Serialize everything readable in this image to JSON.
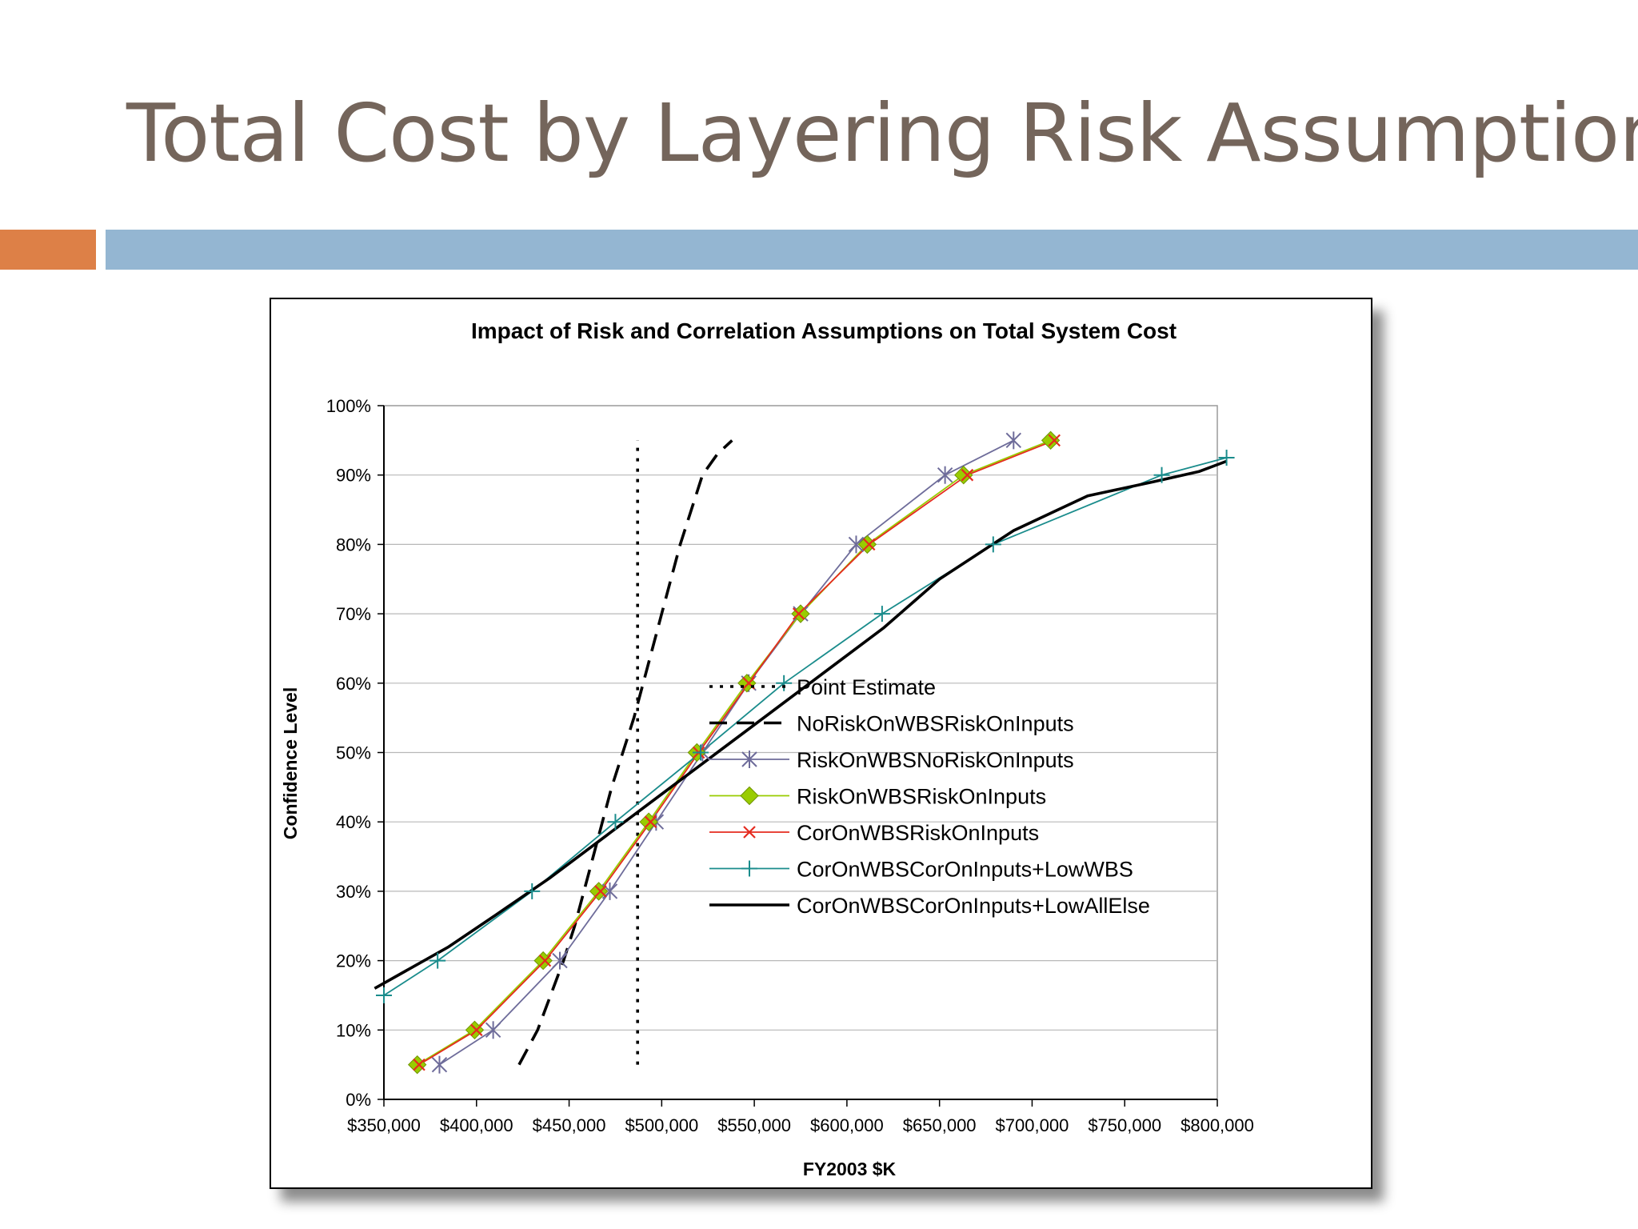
{
  "slide": {
    "title": "Total Cost by Layering Risk Assumptions"
  },
  "colors": {
    "title": "#74655b",
    "accent_orange": "#dd8047",
    "accent_blue": "#94b6d2"
  },
  "chart_data": {
    "type": "line",
    "title": "Impact of Risk and Correlation Assumptions on Total System Cost",
    "xlabel": "FY2003 $K",
    "ylabel": "Confidence Level",
    "xlim": [
      350000,
      800000
    ],
    "ylim": [
      0,
      1
    ],
    "x_ticks": [
      350000,
      400000,
      450000,
      500000,
      550000,
      600000,
      650000,
      700000,
      750000,
      800000
    ],
    "x_tick_labels": [
      "$350,000",
      "$400,000",
      "$450,000",
      "$500,000",
      "$550,000",
      "$600,000",
      "$650,000",
      "$700,000",
      "$750,000",
      "$800,000"
    ],
    "y_ticks": [
      0,
      0.1,
      0.2,
      0.3,
      0.4,
      0.5,
      0.6,
      0.7,
      0.8,
      0.9,
      1.0
    ],
    "y_tick_labels": [
      "0%",
      "10%",
      "20%",
      "30%",
      "40%",
      "50%",
      "60%",
      "70%",
      "80%",
      "90%",
      "100%"
    ],
    "grid": "horizontal",
    "legend_position": "lower-right",
    "series": [
      {
        "name": "Point Estimate",
        "color": "#000000",
        "dash": "dotted",
        "marker": "none",
        "points": [
          [
            487000,
            0.05
          ],
          [
            487000,
            0.95
          ]
        ]
      },
      {
        "name": "NoRiskOnWBSRiskOnInputs",
        "color": "#000000",
        "dash": "dashed",
        "marker": "none",
        "points": [
          [
            423000,
            0.05
          ],
          [
            427000,
            0.07
          ],
          [
            433000,
            0.1
          ],
          [
            440000,
            0.15
          ],
          [
            447000,
            0.2
          ],
          [
            453000,
            0.25
          ],
          [
            458000,
            0.3
          ],
          [
            463000,
            0.35
          ],
          [
            468000,
            0.4
          ],
          [
            473000,
            0.45
          ],
          [
            479000,
            0.5
          ],
          [
            485000,
            0.55
          ],
          [
            490000,
            0.6
          ],
          [
            495000,
            0.65
          ],
          [
            500000,
            0.7
          ],
          [
            505000,
            0.75
          ],
          [
            510000,
            0.8
          ],
          [
            516000,
            0.85
          ],
          [
            522000,
            0.9
          ],
          [
            530000,
            0.93
          ],
          [
            538000,
            0.95
          ]
        ]
      },
      {
        "name": "RiskOnWBSNoRiskOnInputs",
        "color": "#6e6c9a",
        "dash": "solid",
        "marker": "star",
        "points": [
          [
            380000,
            0.05
          ],
          [
            409000,
            0.1
          ],
          [
            445000,
            0.2
          ],
          [
            472000,
            0.3
          ],
          [
            497000,
            0.4
          ],
          [
            522000,
            0.5
          ],
          [
            547000,
            0.6
          ],
          [
            575000,
            0.7
          ],
          [
            605000,
            0.8
          ],
          [
            653000,
            0.9
          ],
          [
            690000,
            0.95
          ]
        ]
      },
      {
        "name": "RiskOnWBSRiskOnInputs",
        "color": "#99cc00",
        "dash": "solid",
        "marker": "diamond",
        "points": [
          [
            368000,
            0.05
          ],
          [
            399000,
            0.1
          ],
          [
            436000,
            0.2
          ],
          [
            466000,
            0.3
          ],
          [
            493000,
            0.4
          ],
          [
            519000,
            0.5
          ],
          [
            546000,
            0.6
          ],
          [
            575000,
            0.7
          ],
          [
            611000,
            0.8
          ],
          [
            663000,
            0.9
          ],
          [
            710000,
            0.95
          ]
        ]
      },
      {
        "name": "CorOnWBSRiskOnInputs",
        "color": "#e52b1f",
        "dash": "solid",
        "marker": "x",
        "points": [
          [
            369000,
            0.05
          ],
          [
            400000,
            0.1
          ],
          [
            437000,
            0.2
          ],
          [
            467000,
            0.3
          ],
          [
            494000,
            0.4
          ],
          [
            520000,
            0.5
          ],
          [
            547000,
            0.6
          ],
          [
            574000,
            0.7
          ],
          [
            612000,
            0.8
          ],
          [
            665000,
            0.9
          ],
          [
            712000,
            0.95
          ]
        ]
      },
      {
        "name": "CorOnWBSCorOnInputs+LowWBS",
        "color": "#1a8c8c",
        "dash": "solid",
        "marker": "plus",
        "points": [
          [
            350000,
            0.15
          ],
          [
            379000,
            0.2
          ],
          [
            430000,
            0.3
          ],
          [
            475000,
            0.4
          ],
          [
            521000,
            0.5
          ],
          [
            566000,
            0.6
          ],
          [
            619000,
            0.7
          ],
          [
            679000,
            0.8
          ],
          [
            770000,
            0.9
          ],
          [
            805000,
            0.925
          ]
        ]
      },
      {
        "name": "CorOnWBSCorOnInputs+LowAllElse",
        "color": "#000000",
        "dash": "solid",
        "marker": "none",
        "width": "bold",
        "points": [
          [
            345000,
            0.16
          ],
          [
            365000,
            0.19
          ],
          [
            385000,
            0.22
          ],
          [
            410000,
            0.265
          ],
          [
            440000,
            0.32
          ],
          [
            470000,
            0.38
          ],
          [
            500000,
            0.44
          ],
          [
            530000,
            0.5
          ],
          [
            560000,
            0.56
          ],
          [
            590000,
            0.62
          ],
          [
            620000,
            0.68
          ],
          [
            650000,
            0.75
          ],
          [
            690000,
            0.82
          ],
          [
            730000,
            0.87
          ],
          [
            765000,
            0.89
          ],
          [
            790000,
            0.905
          ],
          [
            805000,
            0.92
          ]
        ]
      }
    ]
  }
}
